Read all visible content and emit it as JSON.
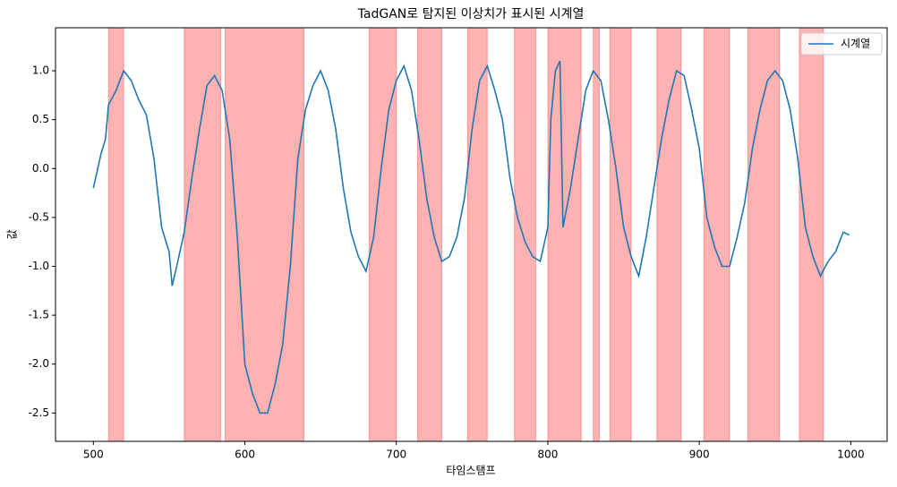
{
  "chart_data": {
    "type": "line",
    "title": "TadGAN로 탐지된 이상치가 표시된 시계열",
    "xlabel": "타임스탬프",
    "ylabel": "값",
    "x": [
      500,
      505,
      508,
      510,
      515,
      520,
      525,
      530,
      535,
      540,
      545,
      550,
      552,
      555,
      560,
      565,
      570,
      575,
      580,
      585,
      590,
      595,
      600,
      605,
      610,
      615,
      620,
      625,
      630,
      635,
      640,
      645,
      650,
      655,
      660,
      665,
      670,
      675,
      680,
      685,
      690,
      695,
      700,
      705,
      710,
      715,
      720,
      725,
      730,
      735,
      740,
      745,
      750,
      755,
      760,
      765,
      770,
      775,
      780,
      785,
      790,
      795,
      800,
      802,
      805,
      808,
      810,
      815,
      820,
      825,
      830,
      835,
      840,
      845,
      850,
      855,
      860,
      865,
      870,
      875,
      880,
      885,
      890,
      895,
      900,
      905,
      910,
      915,
      920,
      925,
      930,
      935,
      940,
      945,
      950,
      955,
      960,
      965,
      970,
      975,
      980,
      985,
      990,
      995,
      999
    ],
    "series": [
      {
        "name": "시계열",
        "color": "#1f77b4",
        "values": [
          -0.2,
          0.15,
          0.3,
          0.65,
          0.8,
          1.0,
          0.9,
          0.7,
          0.55,
          0.1,
          -0.6,
          -0.85,
          -1.2,
          -1.0,
          -0.65,
          -0.1,
          0.4,
          0.85,
          0.95,
          0.8,
          0.3,
          -0.7,
          -2.0,
          -2.3,
          -2.5,
          -2.5,
          -2.2,
          -1.8,
          -1.0,
          0.1,
          0.6,
          0.85,
          1.0,
          0.8,
          0.4,
          -0.2,
          -0.65,
          -0.9,
          -1.05,
          -0.7,
          0.0,
          0.6,
          0.9,
          1.05,
          0.8,
          0.3,
          -0.3,
          -0.7,
          -0.95,
          -0.9,
          -0.7,
          -0.3,
          0.4,
          0.9,
          1.05,
          0.8,
          0.5,
          -0.1,
          -0.5,
          -0.75,
          -0.9,
          -0.95,
          -0.6,
          0.5,
          1.0,
          1.1,
          -0.6,
          -0.2,
          0.3,
          0.8,
          1.0,
          0.9,
          0.5,
          0.0,
          -0.6,
          -0.9,
          -1.1,
          -0.7,
          -0.2,
          0.3,
          0.7,
          1.0,
          0.95,
          0.6,
          0.2,
          -0.5,
          -0.8,
          -1.0,
          -1.0,
          -0.7,
          -0.35,
          0.2,
          0.6,
          0.9,
          1.0,
          0.9,
          0.6,
          0.1,
          -0.6,
          -0.9,
          -1.1,
          -0.95,
          -0.85,
          -0.65,
          -0.68
        ]
      }
    ],
    "anomalies": [
      [
        510,
        520
      ],
      [
        560,
        584
      ],
      [
        587,
        639
      ],
      [
        682,
        700
      ],
      [
        714,
        730
      ],
      [
        747,
        760
      ],
      [
        778,
        792
      ],
      [
        800,
        822
      ],
      [
        830,
        834
      ],
      [
        841,
        855
      ],
      [
        872,
        888
      ],
      [
        903,
        920
      ],
      [
        932,
        953
      ],
      [
        966,
        982
      ]
    ],
    "anomaly_color": "#ff0000",
    "xlim": [
      475,
      1024
    ],
    "ylim": [
      -2.79,
      1.44
    ],
    "xticks": [
      500,
      600,
      700,
      800,
      900,
      1000
    ],
    "yticks": [
      {
        "value": -2.5,
        "label": "-2.5"
      },
      {
        "value": -2.0,
        "label": "-2.0"
      },
      {
        "value": -1.5,
        "label": "-1.5"
      },
      {
        "value": -1.0,
        "label": "-1.0"
      },
      {
        "value": -0.5,
        "label": "-0.5"
      },
      {
        "value": 0.0,
        "label": "0.0"
      },
      {
        "value": 0.5,
        "label": "0.5"
      },
      {
        "value": 1.0,
        "label": "1.0"
      }
    ],
    "legend": "upper right",
    "grid": false
  }
}
